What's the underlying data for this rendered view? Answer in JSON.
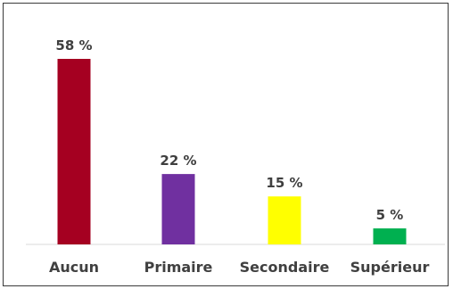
{
  "chart_data": {
    "type": "bar",
    "title": "",
    "xlabel": "",
    "ylabel": "",
    "categories": [
      "Aucun",
      "Primaire",
      "Secondaire",
      "Supérieur"
    ],
    "values": [
      58,
      22,
      15,
      5
    ],
    "data_labels": [
      "58 %",
      "22 %",
      "15 %",
      "5 %"
    ],
    "colors": [
      "#a50021",
      "#7030a0",
      "#ffff00",
      "#00b050"
    ],
    "ylim": [
      0,
      60
    ],
    "grid": false,
    "legend": "none"
  }
}
